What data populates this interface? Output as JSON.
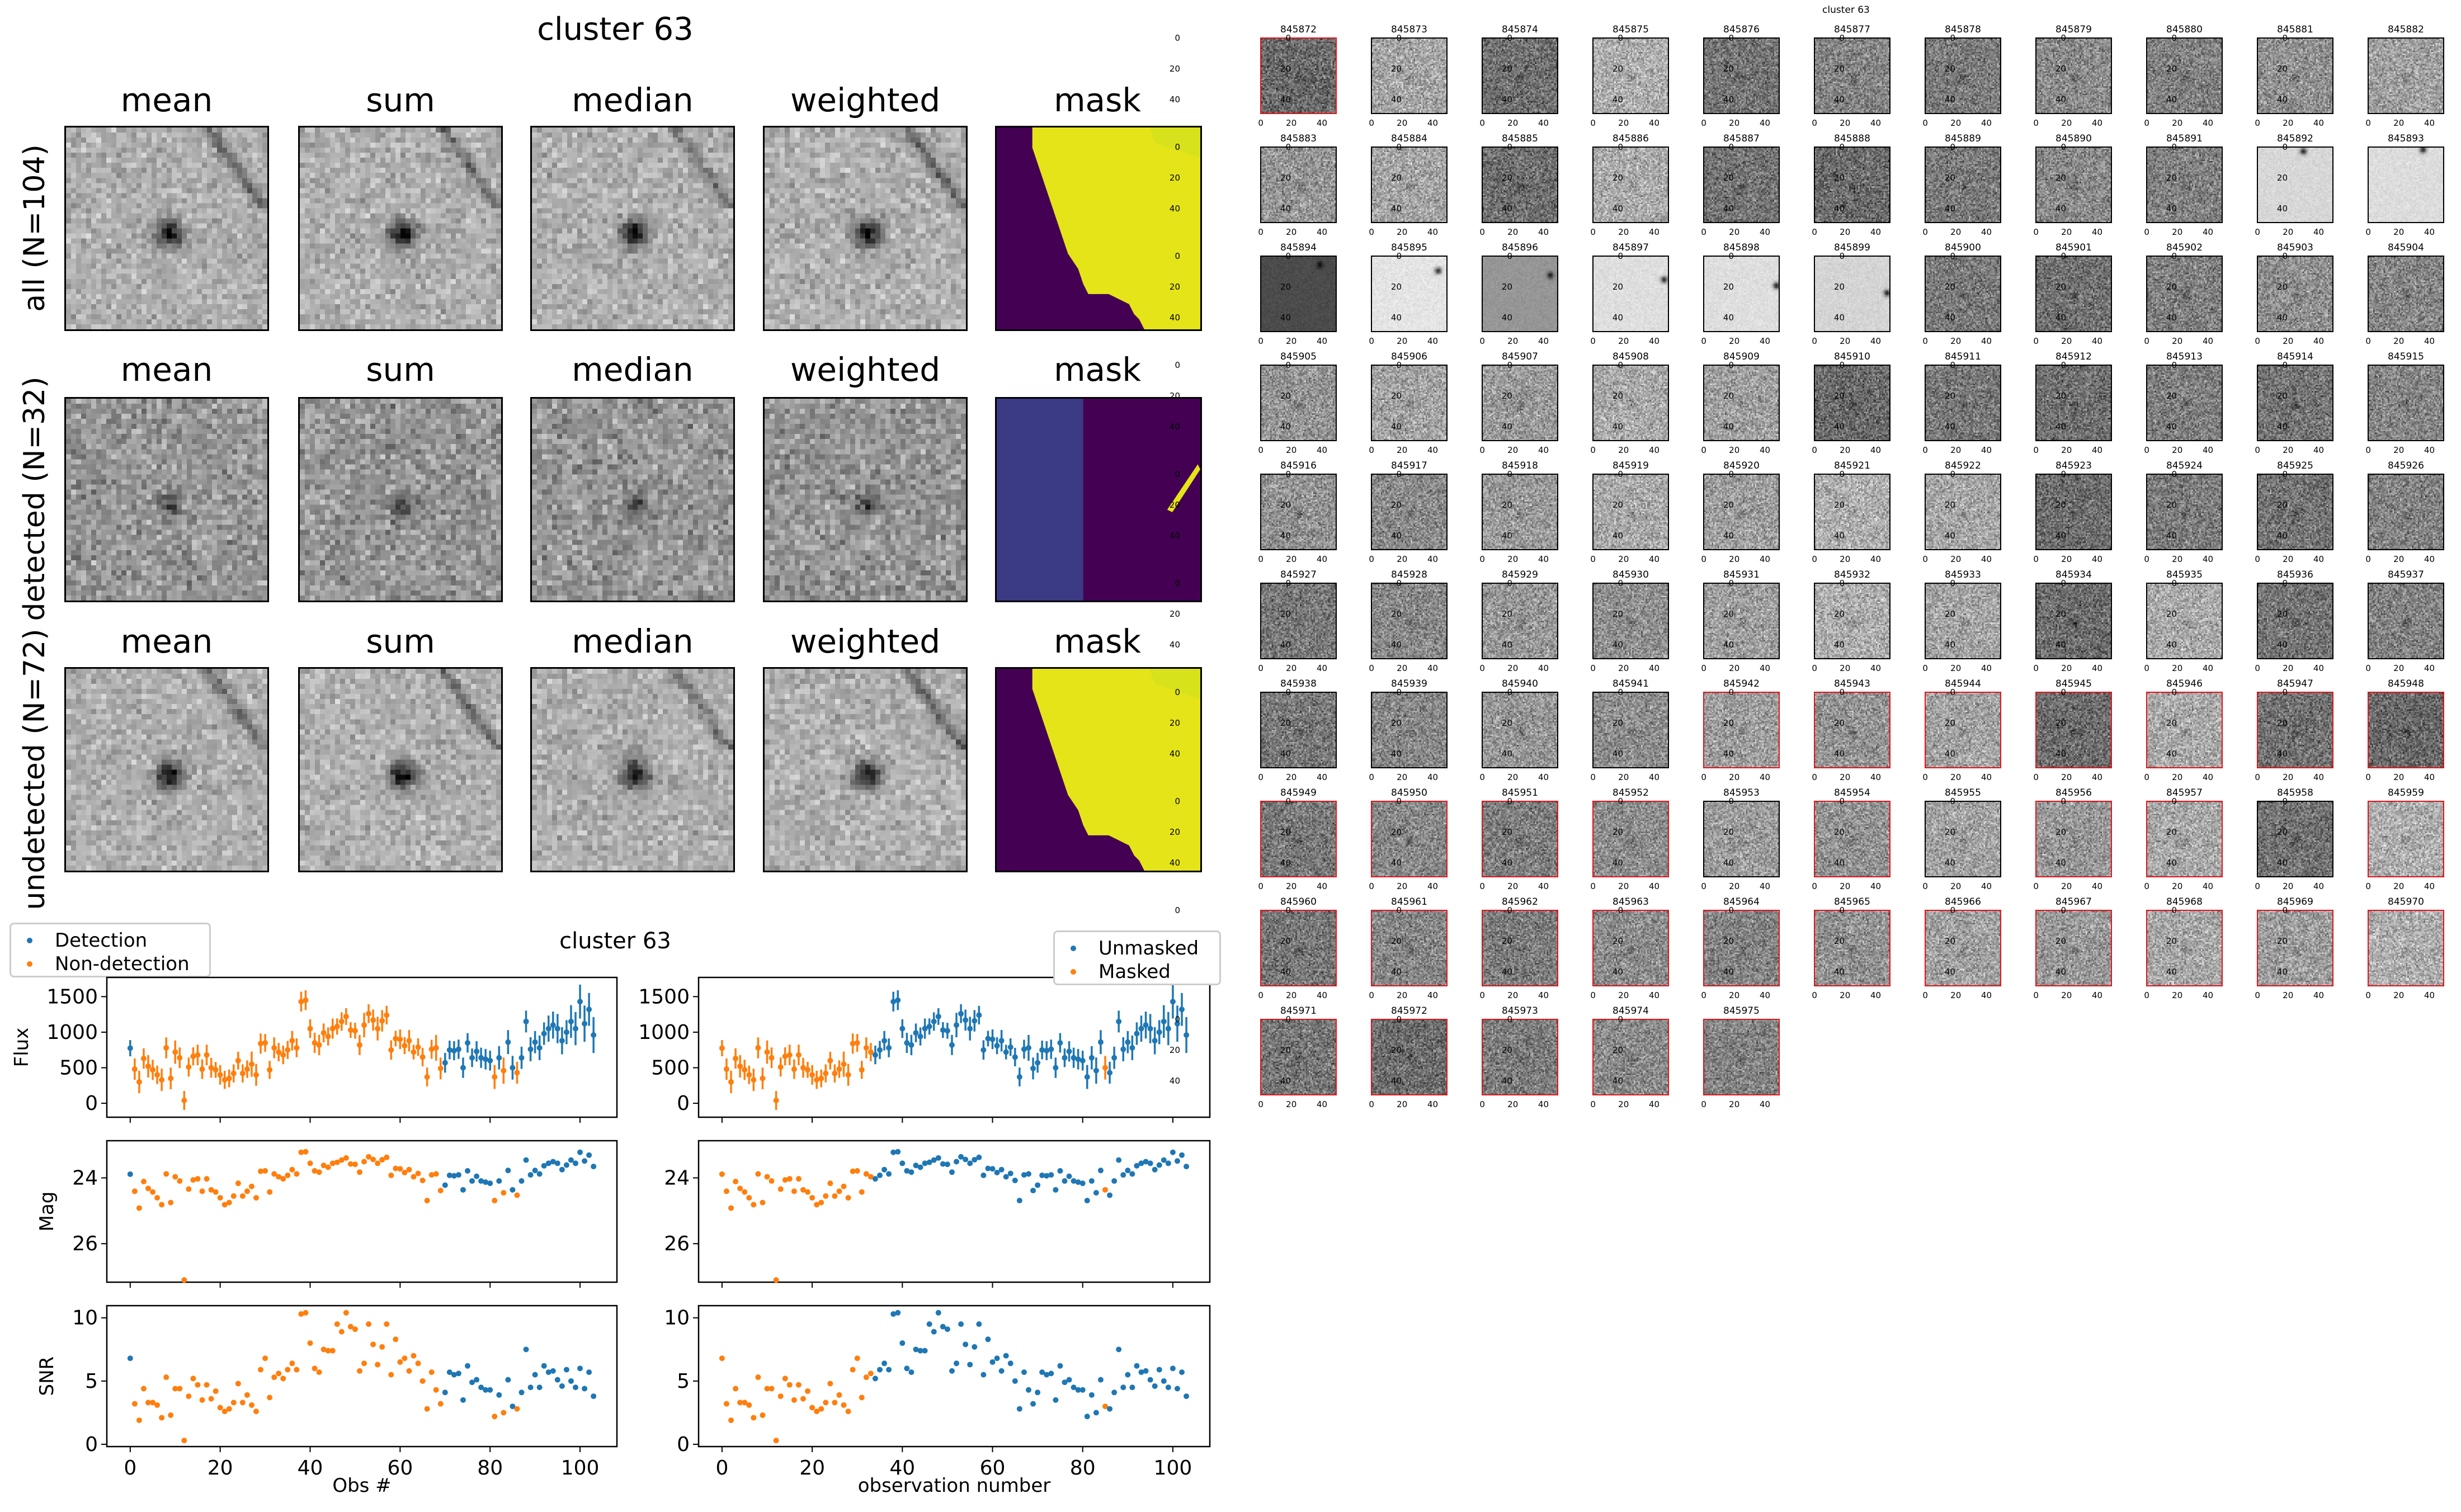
{
  "stacks": {
    "title": "cluster 63",
    "column_labels": [
      "mean",
      "sum",
      "median",
      "weighted",
      "mask"
    ],
    "row_labels": [
      "all (N=104)",
      "detected (N=32)",
      "undetected (N=72)"
    ],
    "mask_colors": {
      "low": "#440154",
      "mid": "#3b3a85",
      "high": "#e5e419"
    }
  },
  "lightcurve": {
    "title": "cluster 63",
    "legend_left": [
      "Detection",
      "Non-detection"
    ],
    "legend_right": [
      "Unmasked",
      "Masked"
    ]
  },
  "chart_data": {
    "type": "scatter",
    "title": "cluster 63",
    "x_label_left": "Obs #",
    "x_label_right": "observation number",
    "y_labels": [
      "Flux",
      "Mag",
      "SNR"
    ],
    "xlim": [
      -5.2,
      108.2
    ],
    "x_ticks": [
      "0",
      "20",
      "40",
      "60",
      "80",
      "100"
    ],
    "flux_ylim": [
      -196,
      1770
    ],
    "flux_ticks": [
      "0",
      "500",
      "1000",
      "1500"
    ],
    "mag_ylim": [
      27.17,
      22.87
    ],
    "mag_ticks": [
      "24",
      "26"
    ],
    "snr_ylim": [
      -0.18,
      10.96
    ],
    "snr_ticks": [
      "0",
      "5",
      "10"
    ],
    "mag_zeropoint": 31.11,
    "colors": {
      "blue": "#1f77b4",
      "orange": "#ff7f0e"
    },
    "flux": [
      775,
      480,
      300,
      630,
      520,
      470,
      400,
      330,
      780,
      350,
      720,
      640,
      40,
      510,
      660,
      680,
      480,
      680,
      500,
      470,
      400,
      330,
      350,
      420,
      600,
      420,
      480,
      550,
      400,
      840,
      850,
      470,
      780,
      720,
      680,
      750,
      880,
      780,
      1430,
      1450,
      1050,
      850,
      820,
      990,
      940,
      1050,
      1080,
      1150,
      1220,
      1030,
      1020,
      820,
      1100,
      1260,
      1170,
      1050,
      1160,
      1240,
      750,
      910,
      900,
      810,
      880,
      720,
      790,
      650,
      370,
      760,
      780,
      490,
      570,
      750,
      740,
      760,
      500,
      850,
      640,
      730,
      640,
      620,
      600,
      370,
      640,
      460,
      860,
      500,
      430,
      640,
      1150,
      760,
      860,
      780,
      980,
      1050,
      1100,
      1050,
      880,
      1000,
      1150,
      1050,
      1430,
      1120,
      1320,
      960
    ],
    "snr": [
      6.8,
      3.2,
      1.9,
      4.4,
      3.3,
      3.3,
      3.1,
      2.1,
      5.3,
      2.3,
      4.4,
      4.4,
      0.3,
      3.8,
      5.2,
      4.7,
      3.5,
      4.7,
      3.6,
      4.2,
      2.9,
      2.6,
      2.8,
      3.3,
      4.8,
      3.3,
      3.9,
      3.1,
      2.6,
      5.9,
      6.8,
      3.7,
      5.3,
      5.6,
      5.2,
      5.9,
      6.4,
      5.9,
      10.3,
      10.4,
      8.0,
      6.0,
      5.7,
      7.5,
      7.4,
      7.4,
      9.5,
      8.9,
      10.4,
      9.3,
      9.1,
      5.8,
      6.4,
      9.5,
      7.9,
      6.3,
      7.7,
      9.5,
      5.5,
      8.3,
      6.5,
      6.8,
      5.8,
      7.0,
      6.4,
      5.0,
      2.8,
      5.7,
      4.3,
      3.2,
      4.1,
      5.7,
      5.5,
      5.6,
      3.5,
      6.2,
      4.9,
      5.1,
      4.5,
      4.3,
      4.3,
      2.2,
      3.9,
      2.5,
      5.1,
      3.0,
      2.8,
      4.1,
      7.5,
      4.5,
      5.5,
      4.5,
      6.2,
      5.7,
      5.8,
      5.1,
      4.6,
      5.9,
      5.0,
      4.5,
      6.0,
      4.4,
      5.7,
      3.8
    ],
    "detected_obs": [
      0,
      70,
      71,
      72,
      73,
      74,
      75,
      76,
      77,
      78,
      79,
      80,
      82,
      84,
      85,
      87,
      88,
      89,
      90,
      91,
      92,
      93,
      94,
      95,
      96,
      97,
      98,
      99,
      100,
      101,
      102,
      103
    ],
    "masked_obs": [
      0,
      1,
      2,
      3,
      4,
      5,
      6,
      7,
      8,
      9,
      10,
      11,
      12,
      13,
      14,
      15,
      16,
      17,
      18,
      19,
      20,
      21,
      22,
      23,
      24,
      25,
      26,
      27,
      28,
      29,
      30,
      31,
      32,
      33,
      85
    ]
  },
  "thumbnails": {
    "title": "cluster 63",
    "ticks": [
      "0",
      "20",
      "40"
    ],
    "ids": [
      "845872",
      "845873",
      "845874",
      "845875",
      "845876",
      "845877",
      "845878",
      "845879",
      "845880",
      "845881",
      "845882",
      "845883",
      "845884",
      "845885",
      "845886",
      "845887",
      "845888",
      "845889",
      "845890",
      "845891",
      "845892",
      "845893",
      "845894",
      "845895",
      "845896",
      "845897",
      "845898",
      "845899",
      "845900",
      "845901",
      "845902",
      "845903",
      "845904",
      "845905",
      "845906",
      "845907",
      "845908",
      "845909",
      "845910",
      "845911",
      "845912",
      "845913",
      "845914",
      "845915",
      "845916",
      "845917",
      "845918",
      "845919",
      "845920",
      "845921",
      "845922",
      "845923",
      "845924",
      "845925",
      "845926",
      "845927",
      "845928",
      "845929",
      "845930",
      "845931",
      "845932",
      "845933",
      "845934",
      "845935",
      "845936",
      "845937",
      "845938",
      "845939",
      "845940",
      "845941",
      "845942",
      "845943",
      "845944",
      "845945",
      "845946",
      "845947",
      "845948",
      "845949",
      "845950",
      "845951",
      "845952",
      "845953",
      "845954",
      "845955",
      "845956",
      "845957",
      "845958",
      "845959",
      "845960",
      "845961",
      "845962",
      "845963",
      "845964",
      "845965",
      "845966",
      "845967",
      "845968",
      "845969",
      "845970",
      "845971",
      "845972",
      "845973",
      "845974",
      "845975"
    ],
    "detected_ids": [
      "845872",
      "845942",
      "845943",
      "845944",
      "845945",
      "845946",
      "845947",
      "845948",
      "845949",
      "845950",
      "845951",
      "845952",
      "845954",
      "845956",
      "845957",
      "845959",
      "845960",
      "845961",
      "845962",
      "845963",
      "845964",
      "845965",
      "845966",
      "845967",
      "845968",
      "845969",
      "845970",
      "845971",
      "845972",
      "845973",
      "845974",
      "845975"
    ],
    "detected_color": "#e0151b"
  }
}
